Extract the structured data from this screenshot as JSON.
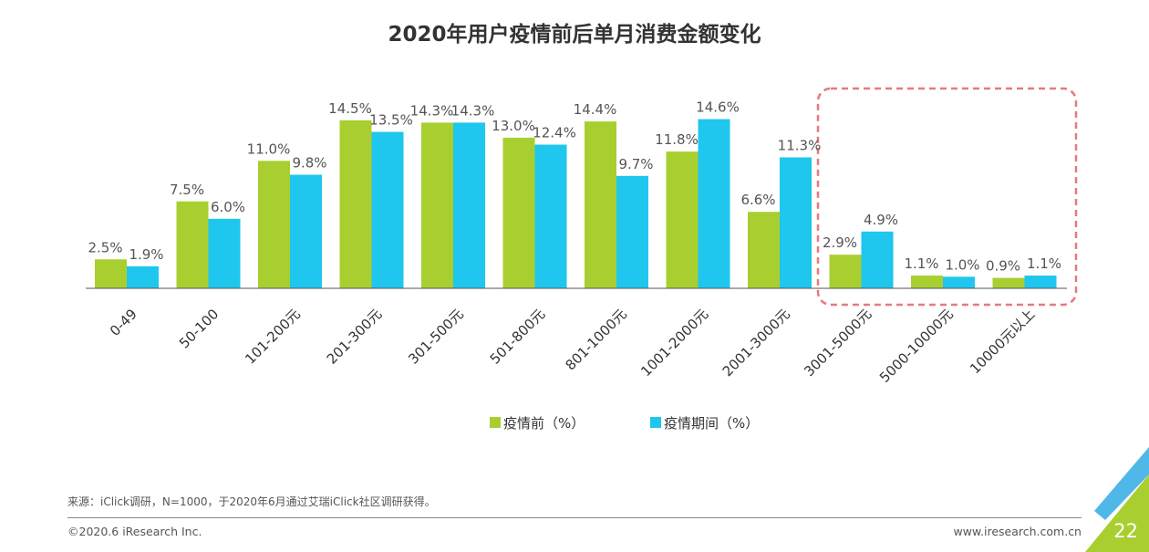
{
  "chart_data": {
    "type": "bar",
    "title": "2020年用户疫情前后单月消费金额变化",
    "categories": [
      "0-49",
      "50-100",
      "101-200元",
      "201-300元",
      "301-500元",
      "501-800元",
      "801-1000元",
      "1001-2000元",
      "2001-3000元",
      "3001-5000元",
      "5000-10000元",
      "10000元以上"
    ],
    "series": [
      {
        "name": "疫情前（%）",
        "color": "#a8cf2f",
        "values": [
          2.5,
          7.5,
          11.0,
          14.5,
          14.3,
          13.0,
          14.4,
          11.8,
          6.6,
          2.9,
          1.1,
          0.9
        ]
      },
      {
        "name": "疫情期间（%）",
        "color": "#1fc6ee",
        "values": [
          1.9,
          6.0,
          9.8,
          13.5,
          14.3,
          12.4,
          9.7,
          14.6,
          11.3,
          4.9,
          1.0,
          1.1
        ]
      }
    ],
    "ylim": [
      0,
      16
    ],
    "legend": "bottom",
    "grid": false,
    "highlight": {
      "categories": [
        "3001-5000元",
        "5000-10000元",
        "10000元以上"
      ],
      "color": "#e57a7e"
    }
  },
  "footer": {
    "source": "来源：iClick调研，N=1000，于2020年6月通过艾瑞iClick社区调研获得。",
    "copyright": "©2020.6 iResearch Inc.",
    "website": "www.iresearch.com.cn",
    "page": "22"
  }
}
